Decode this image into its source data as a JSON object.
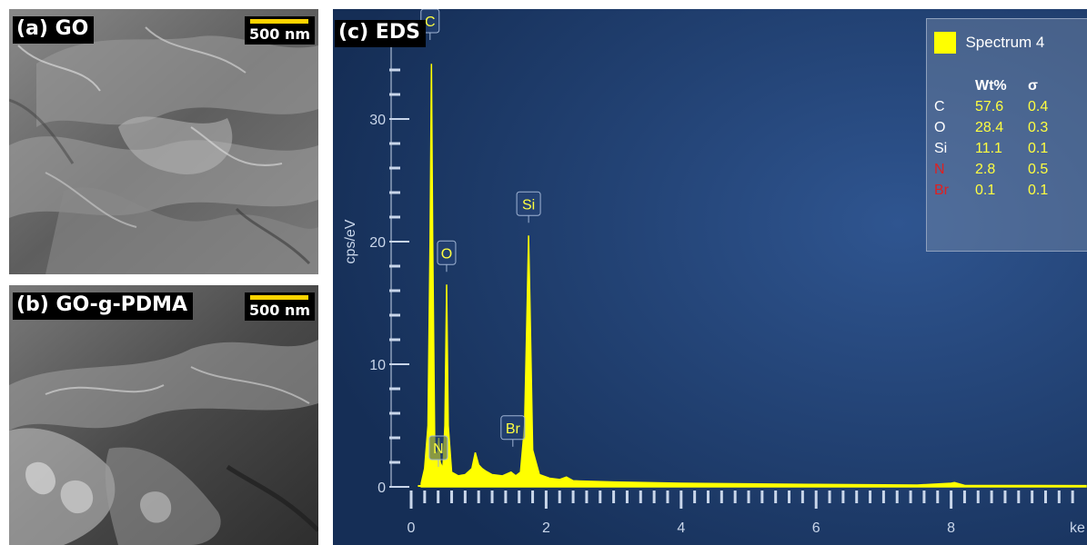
{
  "panel_a": {
    "label": "(a) GO",
    "scale": "500 nm"
  },
  "panel_b": {
    "label": "(b) GO-g-PDMA",
    "scale": "500 nm"
  },
  "panel_c": {
    "label": "(c) EDS",
    "legend": {
      "spectrum": "Spectrum 4",
      "header_wt": "Wt%",
      "header_sigma": "σ",
      "rows": [
        {
          "el": "C",
          "wt": "57.6",
          "sigma": "0.4",
          "color": "#ffffff"
        },
        {
          "el": "O",
          "wt": "28.4",
          "sigma": "0.3",
          "color": "#ffffff"
        },
        {
          "el": "Si",
          "wt": "11.1",
          "sigma": "0.1",
          "color": "#ffffff"
        },
        {
          "el": "N",
          "wt": "2.8",
          "sigma": "0.5",
          "color": "#e02020"
        },
        {
          "el": "Br",
          "wt": "0.1",
          "sigma": "0.1",
          "color": "#e02020"
        }
      ]
    }
  },
  "chart_data": {
    "type": "line",
    "ylabel": "cps/eV",
    "xlabel": "ke",
    "xlim": [
      0,
      10
    ],
    "ylim": [
      0,
      35
    ],
    "x_ticks": [
      "0",
      "2",
      "4",
      "6",
      "8"
    ],
    "y_ticks": [
      "0",
      "10",
      "20",
      "30"
    ],
    "color": "#ffff00",
    "background": "#1c3a68",
    "series": [
      {
        "points": [
          [
            0.15,
            0.3
          ],
          [
            0.2,
            1.5
          ],
          [
            0.25,
            5
          ],
          [
            0.28,
            20
          ],
          [
            0.3,
            34.5
          ],
          [
            0.32,
            20
          ],
          [
            0.35,
            3
          ],
          [
            0.39,
            2.5
          ],
          [
            0.41,
            4
          ],
          [
            0.43,
            2
          ],
          [
            0.47,
            1.5
          ],
          [
            0.5,
            5
          ],
          [
            0.525,
            16.5
          ],
          [
            0.55,
            5
          ],
          [
            0.6,
            1.2
          ],
          [
            0.7,
            0.9
          ],
          [
            0.8,
            1.0
          ],
          [
            0.9,
            1.5
          ],
          [
            0.95,
            2.8
          ],
          [
            1.0,
            1.8
          ],
          [
            1.05,
            1.5
          ],
          [
            1.1,
            1.3
          ],
          [
            1.2,
            1.0
          ],
          [
            1.35,
            0.9
          ],
          [
            1.48,
            1.2
          ],
          [
            1.55,
            0.9
          ],
          [
            1.62,
            1.2
          ],
          [
            1.68,
            5
          ],
          [
            1.72,
            15
          ],
          [
            1.74,
            20.5
          ],
          [
            1.76,
            15
          ],
          [
            1.8,
            3
          ],
          [
            1.9,
            1.0
          ],
          [
            2.05,
            0.7
          ],
          [
            2.2,
            0.6
          ],
          [
            2.3,
            0.8
          ],
          [
            2.4,
            0.5
          ],
          [
            3.0,
            0.4
          ],
          [
            4.0,
            0.3
          ],
          [
            6.0,
            0.2
          ],
          [
            7.5,
            0.15
          ],
          [
            8.0,
            0.3
          ],
          [
            8.05,
            0.35
          ],
          [
            8.2,
            0.12
          ],
          [
            10.0,
            0.1
          ]
        ]
      }
    ],
    "peak_labels": [
      {
        "text": "C",
        "x": 0.28,
        "y": 34.5
      },
      {
        "text": "N",
        "x": 0.39,
        "y": 4
      },
      {
        "text": "O",
        "x": 0.525,
        "y": 16.5
      },
      {
        "text": "Br",
        "x": 1.48,
        "y": 1.2
      },
      {
        "text": "Si",
        "x": 1.74,
        "y": 20.5
      }
    ]
  }
}
